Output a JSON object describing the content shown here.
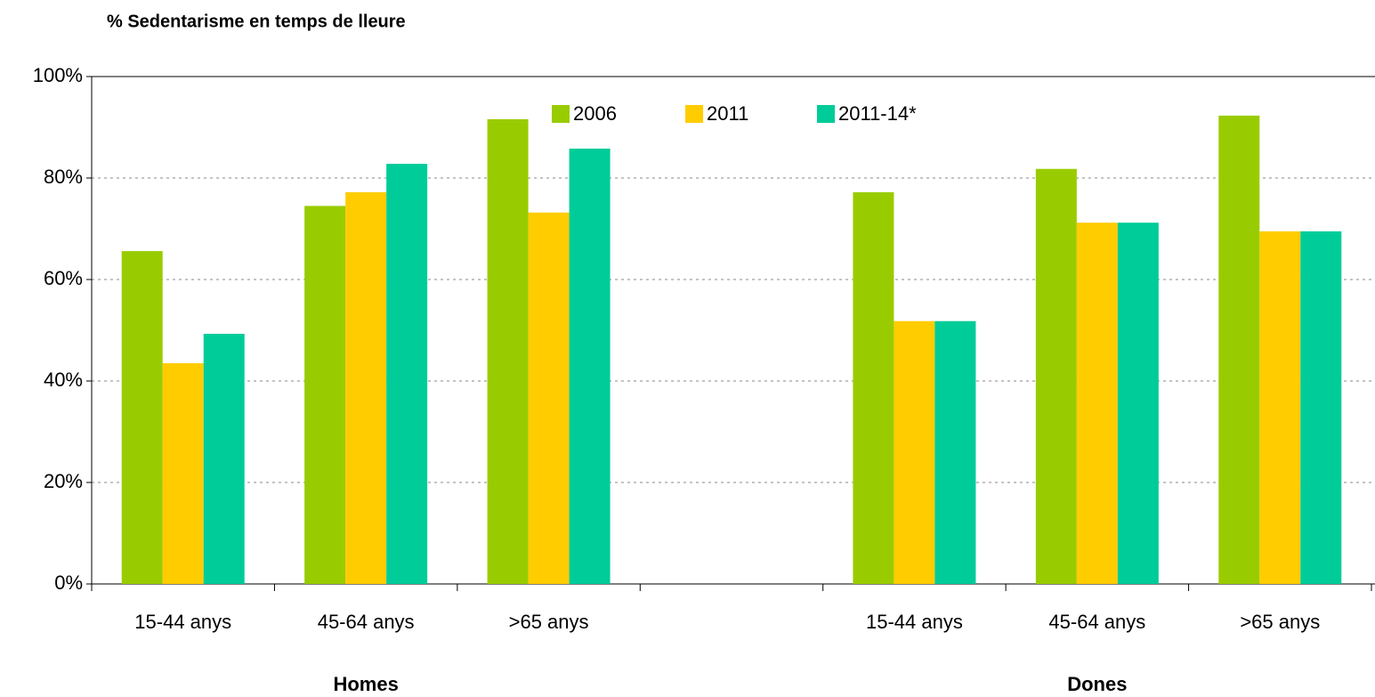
{
  "chart_data": {
    "type": "bar",
    "title": "% Sedentarisme en temps de lleure",
    "categories": [
      "15-44 anys",
      "45-64 anys",
      ">65 anys",
      null,
      "15-44 anys",
      "45-64 anys",
      ">65 anys"
    ],
    "groups": [
      "Homes",
      "Dones"
    ],
    "series": [
      {
        "name": "2006",
        "color": "#99cc00",
        "values": [
          65.6,
          74.5,
          91.6,
          null,
          77.2,
          81.8,
          92.3
        ]
      },
      {
        "name": "2011",
        "color": "#ffcc00",
        "values": [
          43.5,
          77.2,
          73.2,
          null,
          51.8,
          71.2,
          69.5
        ]
      },
      {
        "name": "2011-14*",
        "color": "#00cc99",
        "values": [
          49.3,
          82.8,
          85.8,
          null,
          51.8,
          71.2,
          69.5
        ]
      }
    ],
    "ylim": [
      0,
      100
    ],
    "yticks": [
      {
        "value": 0,
        "label": "0%"
      },
      {
        "value": 20,
        "label": "20%"
      },
      {
        "value": 40,
        "label": "40%"
      },
      {
        "value": 60,
        "label": "60%"
      },
      {
        "value": 80,
        "label": "80%"
      },
      {
        "value": 100,
        "label": "100%"
      }
    ],
    "grid": true,
    "legend": "top"
  }
}
